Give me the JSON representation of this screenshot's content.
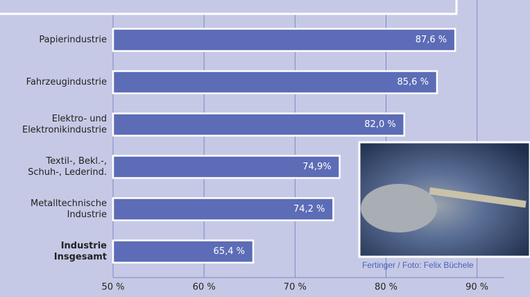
{
  "chart_data": {
    "type": "bar",
    "orientation": "horizontal",
    "categories": [
      [
        "Papierindustrie"
      ],
      [
        "Fahrzeugindustrie"
      ],
      [
        "Elektro- und",
        "Elektronikindustrie"
      ],
      [
        "Textil-, Bekl.-,",
        "Schuh-, Lederind."
      ],
      [
        "Metalltechnische",
        "Industrie"
      ],
      [
        "Industrie",
        "Insgesamt"
      ]
    ],
    "values": [
      87.6,
      85.6,
      82.0,
      74.9,
      74.2,
      65.4
    ],
    "value_labels": [
      "87,6 %",
      "85,6 %",
      "82,0 %",
      "74,9%",
      "74,2 %",
      "65,4 %"
    ],
    "color": "#5c6cb6",
    "xlim": [
      50,
      93
    ],
    "xticks": [
      {
        "value": 50,
        "label": "50 %"
      },
      {
        "value": 60,
        "label": "60 %"
      },
      {
        "value": 70,
        "label": "70 %"
      },
      {
        "value": 80,
        "label": "80 %"
      },
      {
        "value": 90,
        "label": "90 %"
      }
    ],
    "grid": true,
    "credit": "Fertinger / Foto: Felix Büchele"
  }
}
